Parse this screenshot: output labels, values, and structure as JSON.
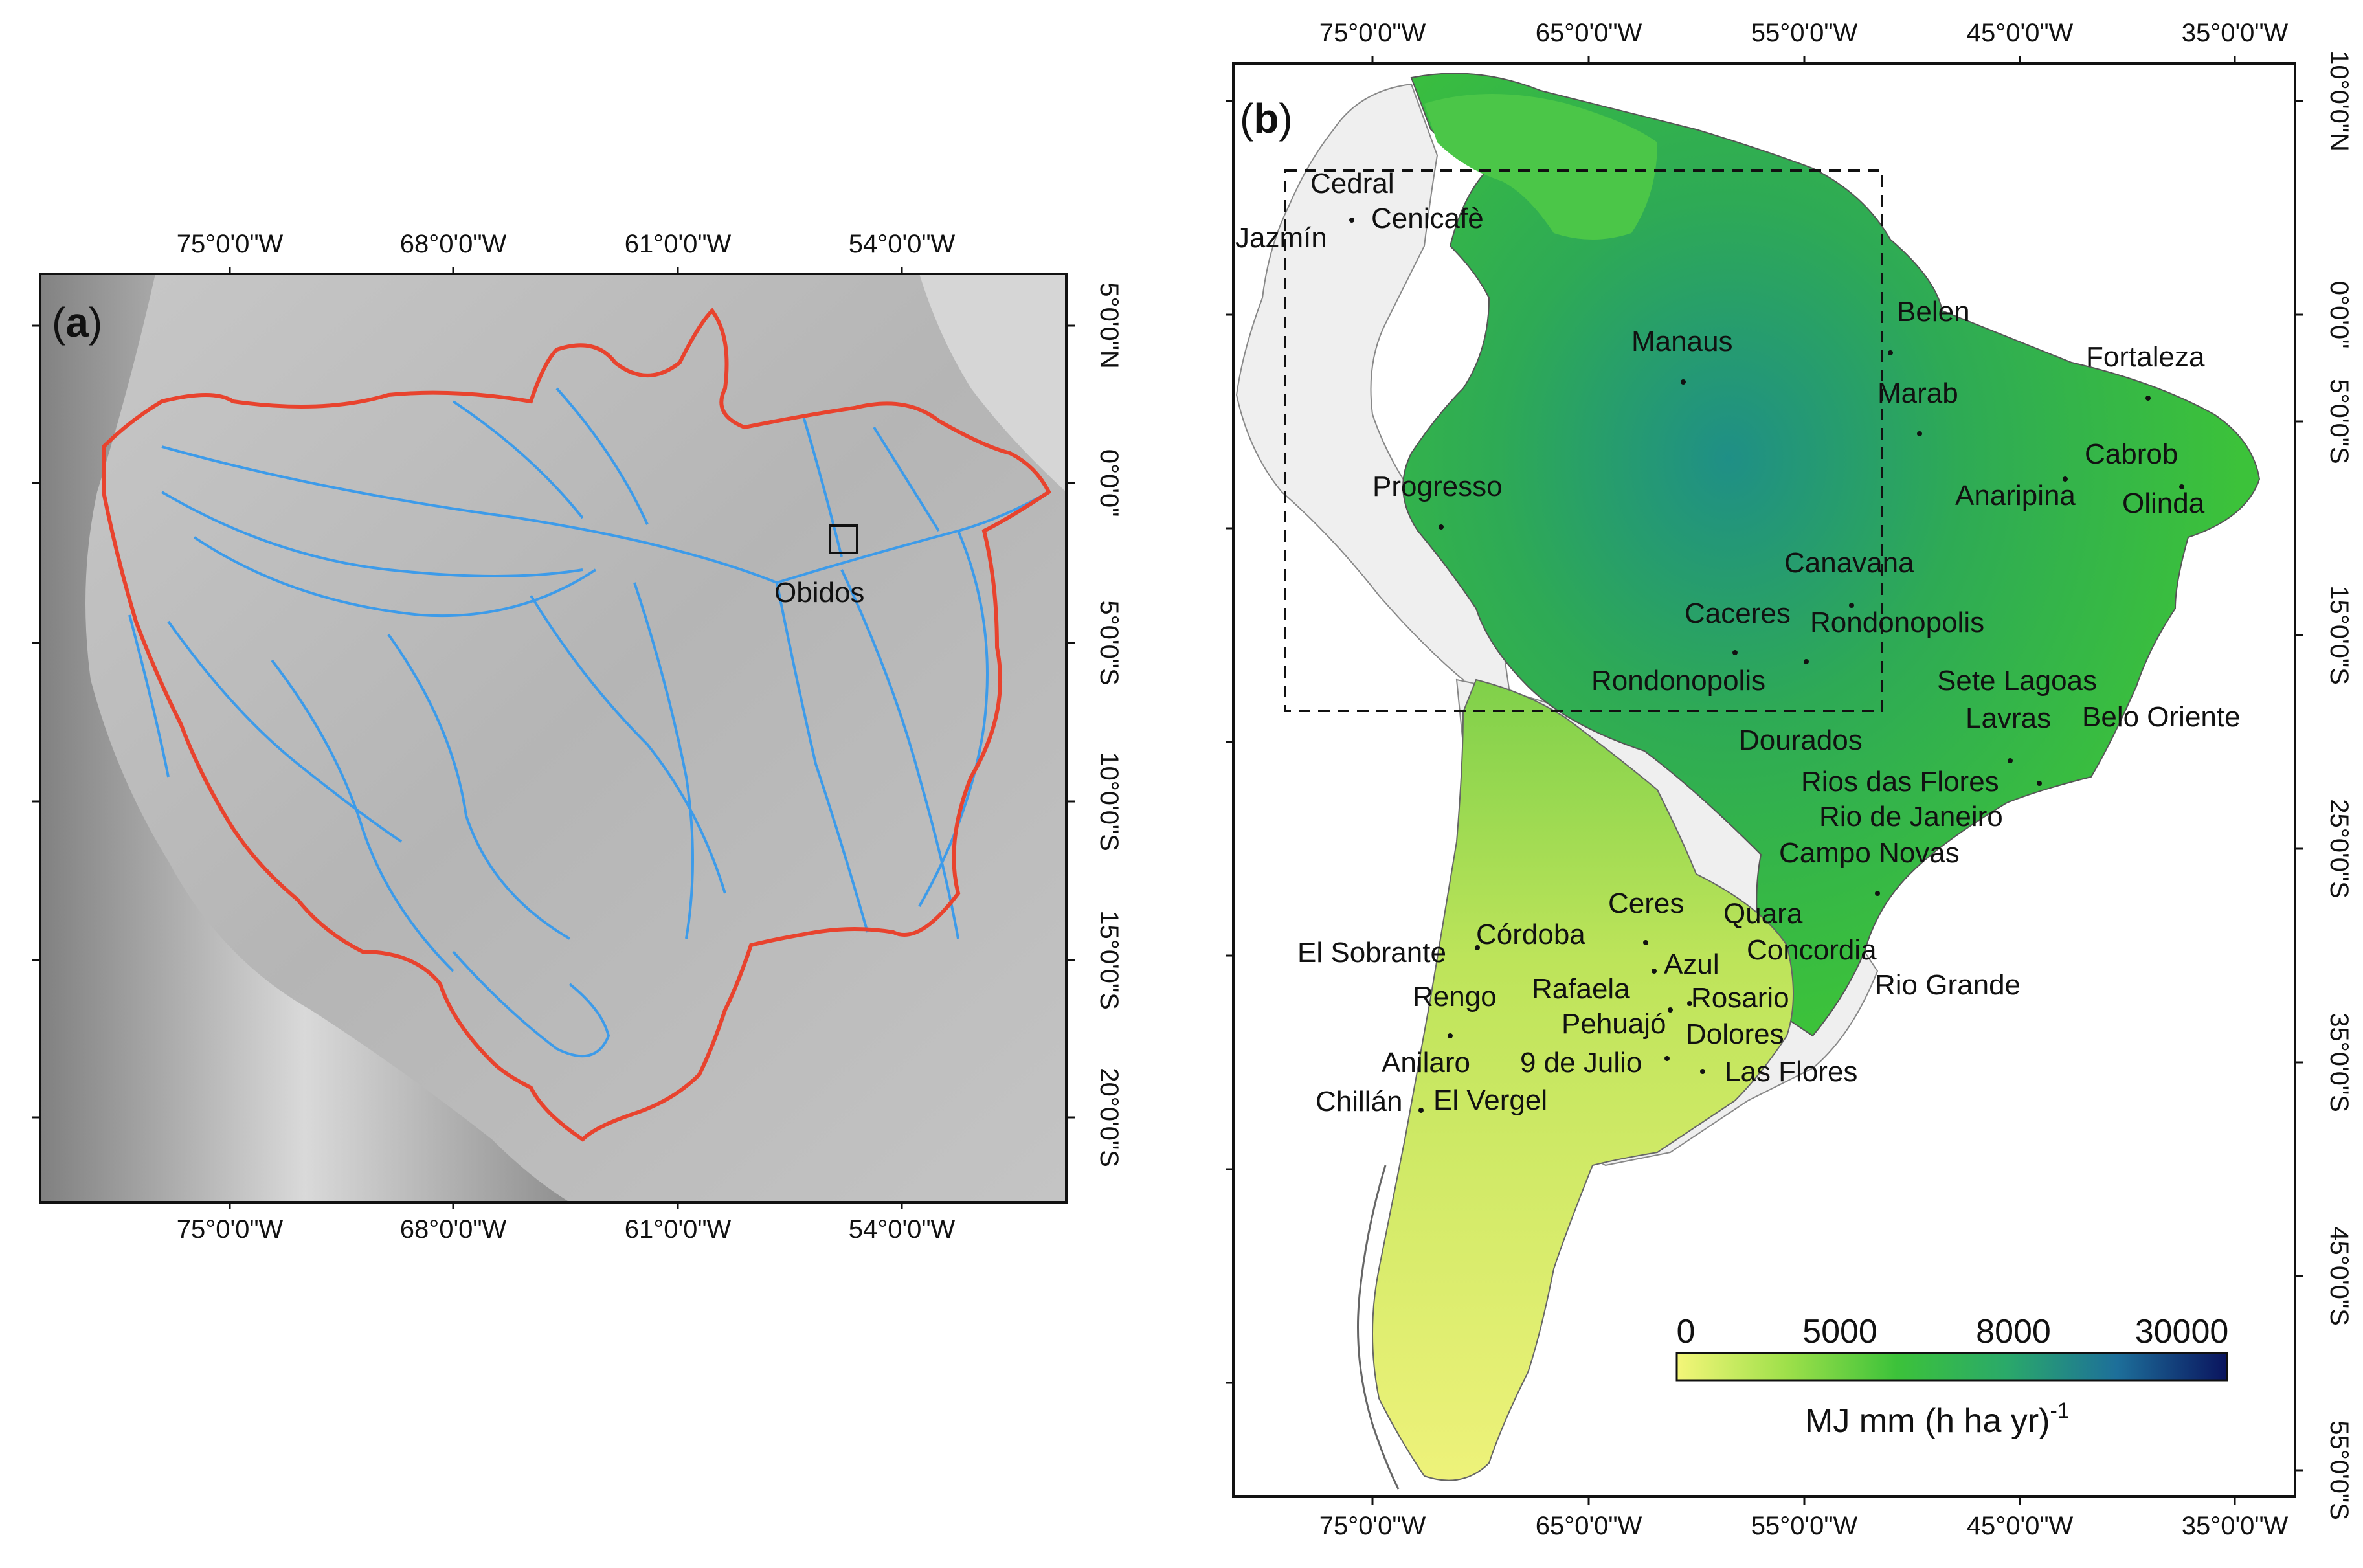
{
  "colors": {
    "basin_outline": "#e8432e",
    "rivers": "#3d9be9",
    "relief": "#b9b9b9",
    "non_study_land": "#efefef",
    "erosivity_low": "#f3f57a",
    "erosivity_mid": "#35c22f",
    "erosivity_high": "#1e6f98",
    "erosivity_max": "#0b1668"
  },
  "panel_a": {
    "label_open": "(",
    "label_letter": "a",
    "label_close": ")",
    "gauge_label": "Obidos",
    "x_ticks": [
      "75°0'0\"W",
      "68°0'0\"W",
      "61°0'0\"W",
      "54°0'0\"W"
    ],
    "y_ticks": [
      "5°0'0\"N",
      "0°0'0\"",
      "5°0'0\"S",
      "10°0'0\"S",
      "15°0'0\"S",
      "20°0'0\"S"
    ]
  },
  "panel_b": {
    "label_open": "(",
    "label_letter": "b",
    "label_close": ")",
    "x_ticks": [
      "75°0'0\"W",
      "65°0'0\"W",
      "55°0'0\"W",
      "45°0'0\"W",
      "35°0'0\"W"
    ],
    "y_ticks": [
      "10°0'0\"N",
      "0°0'0\"",
      "5°0'0\"S",
      "15°0'0\"S",
      "25°0'0\"S",
      "35°0'0\"S",
      "45°0'0\"S",
      "55°0'0\"S"
    ],
    "stations": {
      "cedral": "Cedral",
      "cenicafe": "Cenicafè",
      "jazmin": "Jazmín",
      "manaus": "Manaus",
      "belen": "Belen",
      "fortaleza": "Fortaleza",
      "marab": "Marab",
      "cabrob": "Cabrob",
      "progresso": "Progresso",
      "anaripina": "Anaripina",
      "olinda": "Olinda",
      "canavana": "Canavana",
      "caceres": "Caceres",
      "rondonopolis_a": "Rondonopolis",
      "rondonopolis_b": "Rondonopolis",
      "sete_lagoas": "Sete Lagoas",
      "lavras": "Lavras",
      "belo_oriente": "Belo Oriente",
      "dourados": "Dourados",
      "rios_das_flores": "Rios das Flores",
      "rio_de_janeiro": "Rio de Janeiro",
      "campo_novas": "Campo Novas",
      "ceres": "Ceres",
      "quara": "Quara",
      "cordoba": "Córdoba",
      "el_sobrante": "El Sobrante",
      "concordia": "Concordia",
      "azul": "Azul",
      "rengo": "Rengo",
      "rafaela": "Rafaela",
      "rosario": "Rosario",
      "rio_grande": "Rio Grande",
      "pehuajo": "Pehuajó",
      "dolores": "Dolores",
      "anilaro": "Anilaro",
      "nueve_de_julio": "9 de Julio",
      "las_flores": "Las Flores",
      "chillan": "Chillán",
      "el_vergel": "El Vergel"
    },
    "colorbar": {
      "tick_values": [
        "0",
        "5000",
        "8000",
        "30000"
      ],
      "unit_main": "MJ mm (h ha yr)",
      "unit_exponent": "-1"
    }
  }
}
